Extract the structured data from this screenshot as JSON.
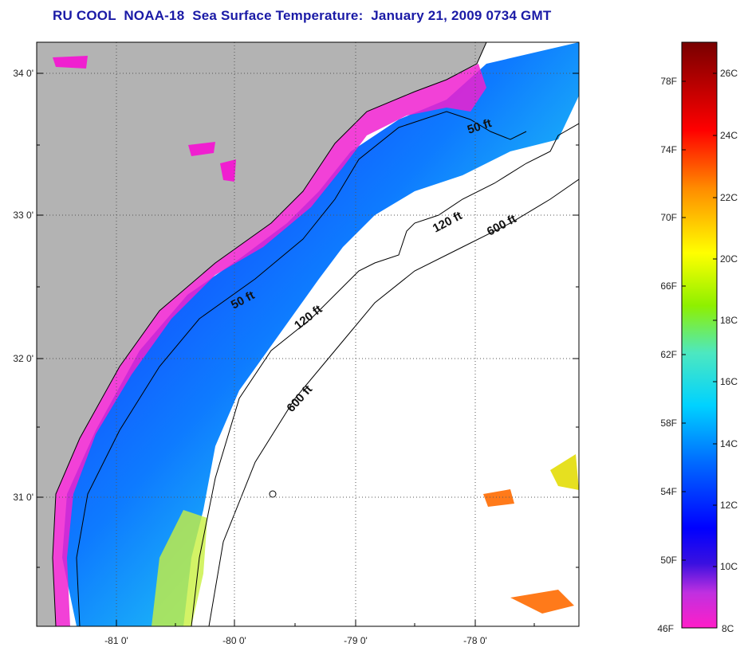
{
  "title": "RU COOL  NOAA-18  Sea Surface Temperature:  January 21, 2009 0734 GMT",
  "map": {
    "lat_ticks": [
      "34 0'",
      "33 0'",
      "32 0'",
      "31 0'"
    ],
    "lon_ticks": [
      "-81 0'",
      "-80 0'",
      "-79 0'",
      "-78 0'"
    ],
    "contours": {
      "c50_a": "50 ft",
      "c50_b": "50 ft",
      "c120_a": "120 ft",
      "c120_b": "120 ft",
      "c600_a": "600 ft",
      "c600_b": "600 ft"
    },
    "colors": {
      "land": "#b3b3b3",
      "ocean_nodata": "#ffffff",
      "frame": "#000000"
    }
  },
  "colorbar": {
    "f_labels": [
      "78F",
      "74F",
      "70F",
      "66F",
      "62F",
      "58F",
      "54F",
      "50F",
      "46F"
    ],
    "c_labels": [
      "26C",
      "24C",
      "22C",
      "20C",
      "18C",
      "16C",
      "14C",
      "12C",
      "10C",
      "8C"
    ],
    "stops": [
      "#ff1ec8",
      "#c030e0",
      "#6a2ad8",
      "#0000ff",
      "#0068ff",
      "#00d2ff",
      "#4de8c0",
      "#8ef000",
      "#ffff00",
      "#ff8c00",
      "#ff0000",
      "#780000"
    ]
  }
}
